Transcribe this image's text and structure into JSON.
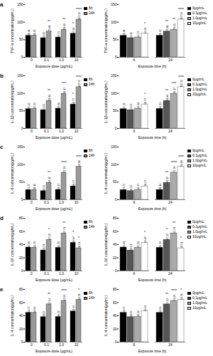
{
  "chart_data": [
    {
      "type": "bar",
      "title": "a",
      "x_label": "Exposure dose (μg/mL)",
      "y_label": "TNF-α concentration(pg/mL)",
      "categories": [
        "0",
        "0.1",
        "1.0",
        "10"
      ],
      "ylim": [
        0,
        150
      ],
      "yticks": [
        0,
        50,
        100,
        150
      ],
      "data_labels": true,
      "series": [
        {
          "name": "6h",
          "color": "#000000",
          "values": [
            61.61,
            54.85,
            56.73,
            67.38
          ],
          "significance": [
            null,
            null,
            null,
            "*"
          ]
        },
        {
          "name": "24h",
          "color": "#999999",
          "values": [
            61.65,
            73.81,
            78.61,
            107.56
          ],
          "significance": [
            null,
            "**",
            "**",
            "****"
          ]
        }
      ]
    },
    {
      "type": "bar",
      "x_label": "Exposure time (h)",
      "y_label": "TNF-α concentration(pg/mL)",
      "categories": [
        "6",
        "24"
      ],
      "ylim": [
        0,
        150
      ],
      "yticks": [
        0,
        50,
        100,
        150
      ],
      "data_labels": true,
      "series": [
        {
          "name": "0μg/mL",
          "color": "#000000",
          "values": [
            61.61,
            61.65
          ],
          "significance": [
            null,
            null
          ]
        },
        {
          "name": "0.1μg/mL",
          "color": "#555555",
          "values": [
            54.85,
            73.81
          ],
          "significance": [
            null,
            "**"
          ]
        },
        {
          "name": "1.0μg/mL",
          "color": "#aaaaaa",
          "values": [
            56.73,
            78.61
          ],
          "significance": [
            null,
            "**"
          ]
        },
        {
          "name": "10μg/mL",
          "color": "#ffffff",
          "values": [
            67.38,
            107.56
          ],
          "significance": [
            "*",
            "****"
          ]
        }
      ]
    },
    {
      "type": "bar",
      "title": "b",
      "x_label": "Exposure dose (μg/mL)",
      "y_label": "IL-1β concentration(pg/mL)",
      "categories": [
        "0",
        "0.1",
        "1.0",
        "10"
      ],
      "ylim": [
        0,
        150
      ],
      "yticks": [
        0,
        50,
        100,
        150
      ],
      "data_labels": true,
      "series": [
        {
          "name": "6h",
          "color": "#000000",
          "values": [
            55.45,
            52.63,
            56.84,
            68.77
          ],
          "significance": [
            null,
            null,
            null,
            "*"
          ]
        },
        {
          "name": "24h",
          "color": "#999999",
          "values": [
            56.03,
            78.89,
            99.17,
            117.75
          ],
          "significance": [
            null,
            "**",
            "***",
            "****"
          ]
        }
      ]
    },
    {
      "type": "bar",
      "x_label": "Exposure time (h)",
      "y_label": "IL-1β concentration(pg/mL)",
      "categories": [
        "6",
        "24"
      ],
      "ylim": [
        0,
        150
      ],
      "yticks": [
        0,
        50,
        100,
        150
      ],
      "data_labels": true,
      "series": [
        {
          "name": "0μg/mL",
          "color": "#000000",
          "values": [
            55.45,
            56.03
          ],
          "significance": [
            null,
            null
          ]
        },
        {
          "name": "0.1μg/mL",
          "color": "#555555",
          "values": [
            52.63,
            78.89
          ],
          "significance": [
            null,
            "**"
          ]
        },
        {
          "name": "1.0μg/mL",
          "color": "#aaaaaa",
          "values": [
            56.84,
            99.17
          ],
          "significance": [
            null,
            "***"
          ]
        },
        {
          "name": "10μg/mL",
          "color": "#ffffff",
          "values": [
            68.77,
            117.75
          ],
          "significance": [
            "*",
            "****"
          ]
        }
      ]
    },
    {
      "type": "bar",
      "title": "c",
      "x_label": "Exposure dose (μg/mL)",
      "y_label": "IL-6 concentration(pg/mL)",
      "categories": [
        "0",
        "0.1",
        "1.0",
        "10"
      ],
      "ylim": [
        0,
        150
      ],
      "yticks": [
        0,
        50,
        100,
        150
      ],
      "data_labels": true,
      "series": [
        {
          "name": "6h",
          "color": "#000000",
          "values": [
            27.77,
            24.65,
            28.37,
            38.27
          ],
          "significance": [
            null,
            null,
            null,
            null
          ]
        },
        {
          "name": "24h",
          "color": "#999999",
          "values": [
            28.16,
            48.17,
            77.28,
            93.88
          ],
          "significance": [
            null,
            "**",
            "****",
            "****"
          ]
        }
      ]
    },
    {
      "type": "bar",
      "x_label": "Exposure time (h)",
      "y_label": "IL-6 concentration(pg/mL)",
      "categories": [
        "6",
        "24"
      ],
      "ylim": [
        0,
        150
      ],
      "yticks": [
        0,
        50,
        100,
        150
      ],
      "data_labels": true,
      "series": [
        {
          "name": "0μg/mL",
          "color": "#000000",
          "values": [
            27.77,
            28.16
          ],
          "significance": [
            null,
            null
          ]
        },
        {
          "name": "0.1μg/mL",
          "color": "#555555",
          "values": [
            24.65,
            48.17
          ],
          "significance": [
            null,
            "**"
          ]
        },
        {
          "name": "1.0μg/mL",
          "color": "#aaaaaa",
          "values": [
            28.37,
            77.28
          ],
          "significance": [
            null,
            "****"
          ]
        },
        {
          "name": "10μg/mL",
          "color": "#ffffff",
          "values": [
            38.27,
            93.88
          ],
          "significance": [
            null,
            "****"
          ]
        }
      ]
    },
    {
      "type": "bar",
      "title": "d",
      "x_label": "Exposure dose (μg/mL)",
      "y_label": "IL-10 concentration(pg/mL)",
      "categories": [
        "0",
        "0.1",
        "1.0",
        "10"
      ],
      "ylim": [
        0,
        80
      ],
      "yticks": [
        0,
        20,
        40,
        60,
        80
      ],
      "data_labels": true,
      "series": [
        {
          "name": "6h",
          "color": "#000000",
          "values": [
            35.68,
            31.21,
            35.21,
            42.87
          ],
          "significance": [
            null,
            null,
            null,
            "*"
          ]
        },
        {
          "name": "24h",
          "color": "#999999",
          "values": [
            35.29,
            47.21,
            57.21,
            34.51
          ],
          "significance": [
            null,
            "*",
            "**",
            "*"
          ]
        }
      ]
    },
    {
      "type": "bar",
      "x_label": "Exposure time (h)",
      "y_label": "IL-10 concentration(pg/mL)",
      "categories": [
        "6",
        "24"
      ],
      "ylim": [
        0,
        80
      ],
      "yticks": [
        0,
        20,
        40,
        60,
        80
      ],
      "data_labels": true,
      "series": [
        {
          "name": "0μg/mL",
          "color": "#000000",
          "values": [
            35.68,
            35.29
          ],
          "significance": [
            null,
            null
          ]
        },
        {
          "name": "0.1μg/mL",
          "color": "#555555",
          "values": [
            31.21,
            47.21
          ],
          "significance": [
            null,
            "*"
          ]
        },
        {
          "name": "1.0μg/mL",
          "color": "#aaaaaa",
          "values": [
            35.21,
            57.21
          ],
          "significance": [
            null,
            "**"
          ]
        },
        {
          "name": "10μg/mL",
          "color": "#ffffff",
          "values": [
            42.87,
            34.51
          ],
          "significance": [
            "*",
            "*"
          ]
        }
      ]
    },
    {
      "type": "bar",
      "title": "e",
      "x_label": "Exposure dose (μg/mL)",
      "y_label": "IL-4 concentration(pg/mL)",
      "categories": [
        "0",
        "0.1",
        "1.0",
        "10"
      ],
      "ylim": [
        0,
        80
      ],
      "yticks": [
        0,
        20,
        40,
        60,
        80
      ],
      "data_labels": true,
      "series": [
        {
          "name": "6h",
          "color": "#000000",
          "values": [
            44.57,
            38.06,
            38.29,
            46.76
          ],
          "significance": [
            null,
            null,
            null,
            null
          ]
        },
        {
          "name": "24h",
          "color": "#999999",
          "values": [
            44.59,
            57.42,
            62.69,
            64.36
          ],
          "significance": [
            null,
            "**",
            "****",
            "*"
          ]
        }
      ]
    },
    {
      "type": "bar",
      "x_label": "Exposure time (h)",
      "y_label": "IL-4 concentration(pg/mL)",
      "categories": [
        "6",
        "24"
      ],
      "ylim": [
        0,
        80
      ],
      "yticks": [
        0,
        20,
        40,
        60,
        80
      ],
      "data_labels": true,
      "series": [
        {
          "name": "0μg/mL",
          "color": "#000000",
          "values": [
            44.57,
            44.59
          ],
          "significance": [
            null,
            null
          ]
        },
        {
          "name": "0.1μg/mL",
          "color": "#555555",
          "values": [
            38.06,
            57.42
          ],
          "significance": [
            null,
            "**"
          ]
        },
        {
          "name": "1.0μg/mL",
          "color": "#aaaaaa",
          "values": [
            38.29,
            62.69
          ],
          "significance": [
            null,
            "****"
          ]
        },
        {
          "name": "10μg/mL",
          "color": "#ffffff",
          "values": [
            46.76,
            64.36
          ],
          "significance": [
            null,
            "*"
          ]
        }
      ]
    }
  ]
}
